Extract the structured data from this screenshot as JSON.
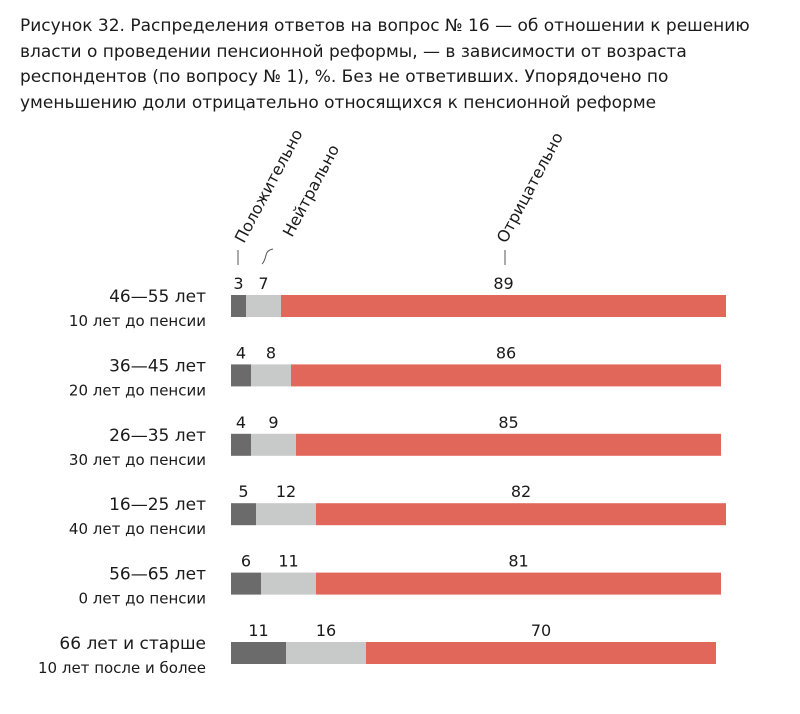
{
  "caption": "Рисунок 32. Распределения ответов на вопрос № 16 — об отношении к решению вла­сти о проведении пенсионной реформы, — в зависимости от возраста респондентов (по вопросу № 1), %. Без не ответивших. Упорядочено по уменьшению доли отрица­тельно относящихся к пенсионной реформе",
  "chart_data": {
    "type": "bar",
    "orientation": "horizontal",
    "stacked": true,
    "categories": [
      "46—55 лет",
      "36—45 лет",
      "26—35 лет",
      "16—25 лет",
      "56—65 лет",
      "66 лет и старше"
    ],
    "category_sublabels": [
      "10 лет до пенсии",
      "20 лет до пенсии",
      "30 лет до пенсии",
      "40 лет до пенсии",
      "0 лет до пенсии",
      "10 лет после и более"
    ],
    "series": [
      {
        "name": "Положительно",
        "values": [
          3,
          4,
          4,
          5,
          6,
          11
        ],
        "color": "#6b6b6b"
      },
      {
        "name": "Нейтрально",
        "values": [
          7,
          8,
          9,
          12,
          11,
          16
        ],
        "color": "#c8c9c9"
      },
      {
        "name": "Отрицательно",
        "values": [
          89,
          86,
          85,
          82,
          81,
          70
        ],
        "color": "#e2675b"
      }
    ],
    "xlim": [
      0,
      100
    ],
    "unit": "%",
    "legend": "rotated labels above the first bar"
  }
}
